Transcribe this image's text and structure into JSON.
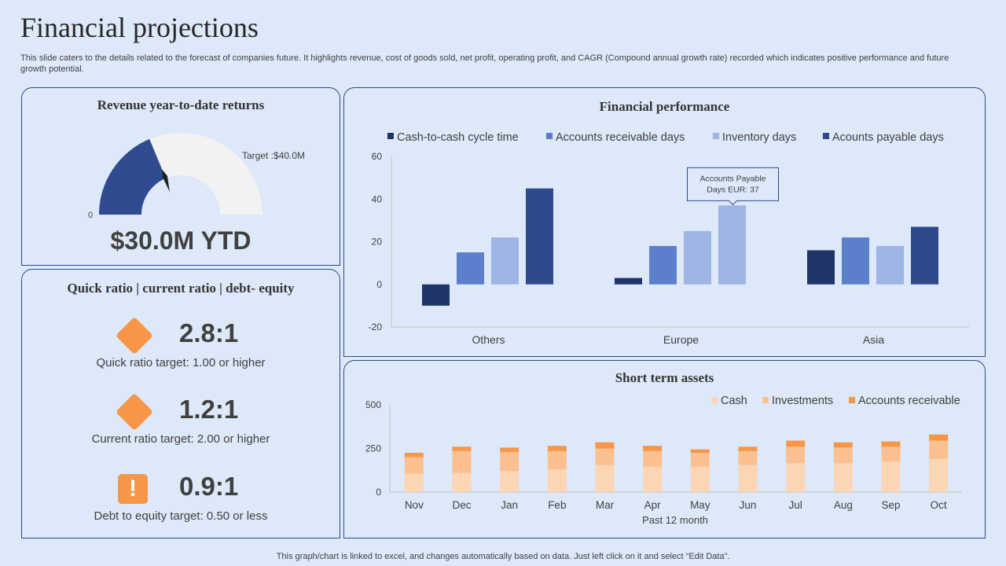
{
  "page": {
    "title": "Financial projections",
    "subtitle": "This slide caters to the details related to the forecast of companies future. It highlights revenue, cost of goods sold, net profit, operating profit, and CAGR (Compound annual growth rate) recorded which indicates positive performance and future growth potential.",
    "footer": "This graph/chart is linked to excel, and changes automatically based on data. Just left click on it and select “Edit Data”."
  },
  "revenue": {
    "title": "Revenue year-to-date returns",
    "gauge_min_label": "0",
    "target_label": "Target  :$40.0M",
    "ytd_label": "$30.0M YTD",
    "gauge_value": 30,
    "gauge_max": 80,
    "colors": {
      "fill": "#2f4a8f",
      "rest": "#f2f2f2",
      "needle": "#1f1f1f"
    }
  },
  "ratios": {
    "title": "Quick ratio | current ratio | debt- equity",
    "items": [
      {
        "value": "2.8:1",
        "label": "Quick ratio target: 1.00 or higher",
        "icon": "diamond-icon"
      },
      {
        "value": "1.2:1",
        "label": "Current ratio target: 2.00 or higher",
        "icon": "diamond-icon"
      },
      {
        "value": "0.9:1",
        "label": "Debt to equity target: 0.50 or less",
        "icon": "alert-icon",
        "glyph": "!"
      }
    ],
    "accent": "#f79646"
  },
  "performance": {
    "title": "Financial performance",
    "callout": {
      "line1": "Accounts Payable",
      "line2": "Days EUR:  37"
    }
  },
  "assets": {
    "title": "Short term assets"
  },
  "chart_data": [
    {
      "id": "financial-performance",
      "type": "bar",
      "title": "Financial performance",
      "categories": [
        "Others",
        "Europe",
        "Asia"
      ],
      "series": [
        {
          "name": "Cash-to-cash cycle time",
          "values": [
            -10,
            3,
            16
          ],
          "color": "#1f3468"
        },
        {
          "name": "Accounts receivable days",
          "values": [
            15,
            18,
            22
          ],
          "color": "#5b7fcb"
        },
        {
          "name": "Inventory days",
          "values": [
            22,
            25,
            18
          ],
          "color": "#9db4e4"
        },
        {
          "name": "Acounts payable days",
          "values": [
            45,
            37,
            27
          ],
          "color": "#2e4a8c"
        }
      ],
      "series_colors_extra": {
        "europe_payable": "#9db4e4"
      },
      "ylim": [
        -20,
        60
      ],
      "yticks": [
        "-20",
        "0",
        "20",
        "40",
        "60"
      ],
      "legend": "top"
    },
    {
      "id": "short-term-assets",
      "type": "bar",
      "stacked": true,
      "title": "Short term assets",
      "xlabel": "Past 12 month",
      "categories": [
        "Nov",
        "Dec",
        "Jan",
        "Feb",
        "Mar",
        "Apr",
        "May",
        "Jun",
        "Jul",
        "Aug",
        "Sep",
        "Oct"
      ],
      "series": [
        {
          "name": "Cash",
          "values": [
            105,
            110,
            120,
            130,
            155,
            145,
            145,
            155,
            165,
            165,
            175,
            190
          ],
          "color": "#fcd5b5"
        },
        {
          "name": "Investments",
          "values": [
            95,
            125,
            110,
            105,
            95,
            90,
            80,
            80,
            95,
            90,
            85,
            105
          ],
          "color": "#fac090"
        },
        {
          "name": "Accounts receivable",
          "values": [
            25,
            25,
            25,
            30,
            35,
            30,
            20,
            25,
            35,
            30,
            30,
            35
          ],
          "color": "#f79646"
        }
      ],
      "ylim": [
        0,
        500
      ],
      "yticks": [
        "0",
        "250",
        "500"
      ],
      "legend": "top-right"
    }
  ]
}
